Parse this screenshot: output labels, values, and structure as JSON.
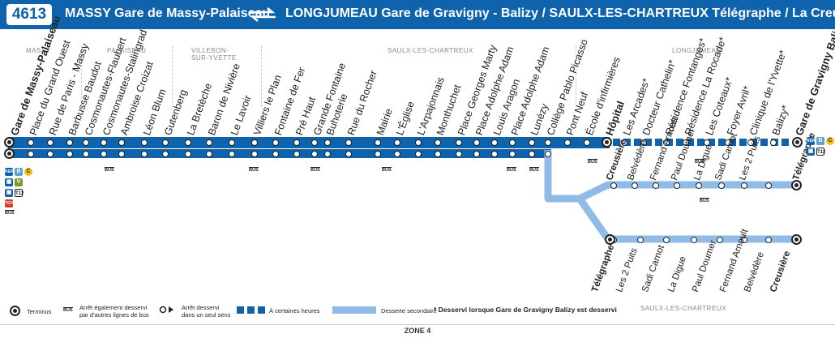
{
  "header": {
    "line_number": "4613",
    "origin": "MASSY Gare de Massy-Palaiseau",
    "destinations": "LONGJUMEAU Gare de Gravigny - Balizy / SAULX-LES-CHARTREUX Télégraphe / La Creusière"
  },
  "zones": {
    "massy": "MASSY",
    "palaiseau": "PALAISEAU",
    "villebon": [
      "VILLEBON-",
      "SUR-YVETTE"
    ],
    "saulx_top": "SAULX-LES-CHARTREUX",
    "longjumeau": "LONGJUMEAU",
    "saulx_bottom": "SAULX-LES-CHARTREUX"
  },
  "main_stops": [
    "Gare de Massy-Palaiseau",
    "Place du Grand Ouest",
    "Rue de Paris - Massy",
    "Barbusse Baudot",
    "Cosmonautes-Flaubert",
    "Cosmonautes-Stalingrad",
    "Ambroise Croizat",
    "Léon Blum",
    "Gutenberg",
    "La Bretèche",
    "Baron de Nivière",
    "Le Lavoir",
    "Villiers le Plan",
    "Fontaine de Fer",
    "Pré Haut",
    "Grande Fontaine",
    "Buhoterie",
    "Rue du Rocher",
    "Mairie",
    "L'Église",
    "L'Arpajonnais",
    "Monthuchet",
    "Place Georges Marty",
    "Place Adolphe Adam",
    "Louis Aragon",
    "Place Adolphe Adam",
    "Lunézy",
    "Collège Pablo Picasso",
    "Pont Neuf",
    "École d'infirmières",
    "Hôpital",
    "Les Arcades*",
    "Docteur Cathelin*",
    "Résidence Fontanges*",
    "Résidence La Rocade*",
    "Les Coteaux*",
    "Foyer Avril*",
    "Clinique de l'Yvette*",
    "Balizy*",
    "Gare de Gravigny Balizy"
  ],
  "branch_upper_stops": [
    "Creusière",
    "Belvédère",
    "Fernand Arnoult",
    "Paul Doumer",
    "La Digue",
    "Sadi Carnot",
    "Les 2 Puits",
    "Télégraphe"
  ],
  "branch_lower_stops": [
    "Télégraphe",
    "Les 2 Puits",
    "Sadi Carnot",
    "La Digue",
    "Paul Doumer",
    "Fernand Arnoult",
    "Belvédère",
    "Creusière"
  ],
  "connections": {
    "rer_label": "RER",
    "rer_b": "B",
    "rer_c": "C",
    "tram": "T12",
    "tgv": "TGV",
    "bus": "BUS"
  },
  "legend": {
    "terminus": "Terminus",
    "bus_line1": "Arrêt également desservi",
    "bus_line2": "par d'autres lignes de bus",
    "oneway_line1": "Arrêt desservi",
    "oneway_line2": "dans un seul sens",
    "sometimes": "À certaines heures",
    "secondary": "Desserte secondaire",
    "note": "* Desservi lorsque Gare de Gravigny Balizy est desservi"
  },
  "zone_label": "ZONE 4",
  "colors": {
    "primary_blue": "#0f63ad",
    "light_blue": "#8fbbe6",
    "rer_b": "#5e9fd8",
    "rer_c": "#f4c01c",
    "tram_green": "#7a9a2c"
  }
}
